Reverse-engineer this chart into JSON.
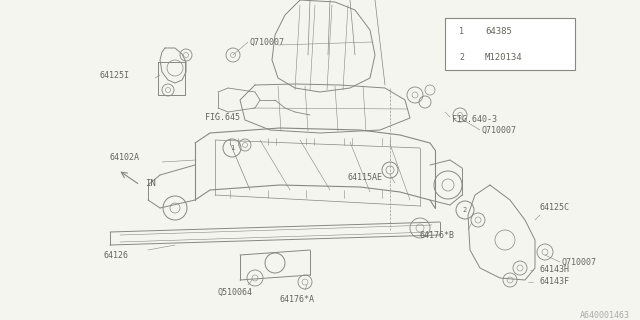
{
  "background_color": "#f5f5f0",
  "line_color": "#888880",
  "label_color": "#666660",
  "figsize": [
    6.4,
    3.2
  ],
  "dpi": 100,
  "watermark_text": "A640001463",
  "legend_entries": [
    {
      "symbol": "1",
      "value": "64385"
    },
    {
      "symbol": "2",
      "value": "M120134"
    }
  ]
}
